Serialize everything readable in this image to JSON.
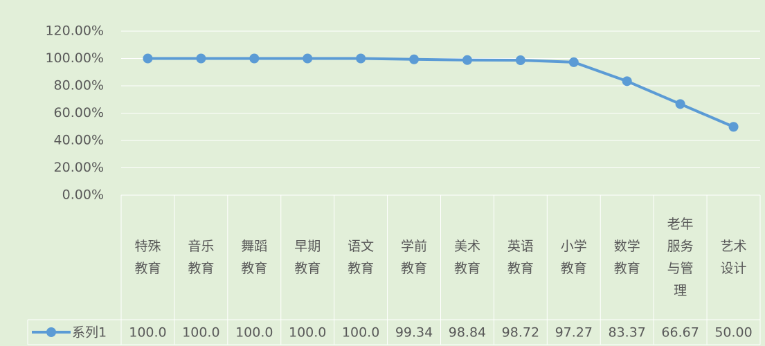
{
  "chart_data": {
    "type": "line",
    "categories": [
      "特殊教育",
      "音乐教育",
      "舞蹈教育",
      "早期教育",
      "语文教育",
      "学前教育",
      "美术教育",
      "英语教育",
      "小学教育",
      "数学教育",
      "老年服务与管理",
      "艺术设计"
    ],
    "series": [
      {
        "name": "系列1",
        "color": "#5b9bd5",
        "values": [
          100,
          100,
          100,
          100,
          100,
          99.34,
          98.84,
          98.72,
          97.27,
          83.37,
          66.67,
          50.0
        ],
        "value_labels": [
          "100.0",
          "100.0",
          "100.0",
          "100.0",
          "100.0",
          "99.34",
          "98.84",
          "98.72",
          "97.27",
          "83.37",
          "66.67",
          "50.00"
        ]
      }
    ],
    "ylim": [
      0,
      120
    ],
    "yticks": [
      {
        "value": 0,
        "label": "0.00%"
      },
      {
        "value": 20,
        "label": "20.00%"
      },
      {
        "value": 40,
        "label": "40.00%"
      },
      {
        "value": 60,
        "label": "60.00%"
      },
      {
        "value": 80,
        "label": "80.00%"
      },
      {
        "value": 100,
        "label": "100.00%"
      },
      {
        "value": 120,
        "label": "120.00%"
      }
    ],
    "grid": true
  }
}
